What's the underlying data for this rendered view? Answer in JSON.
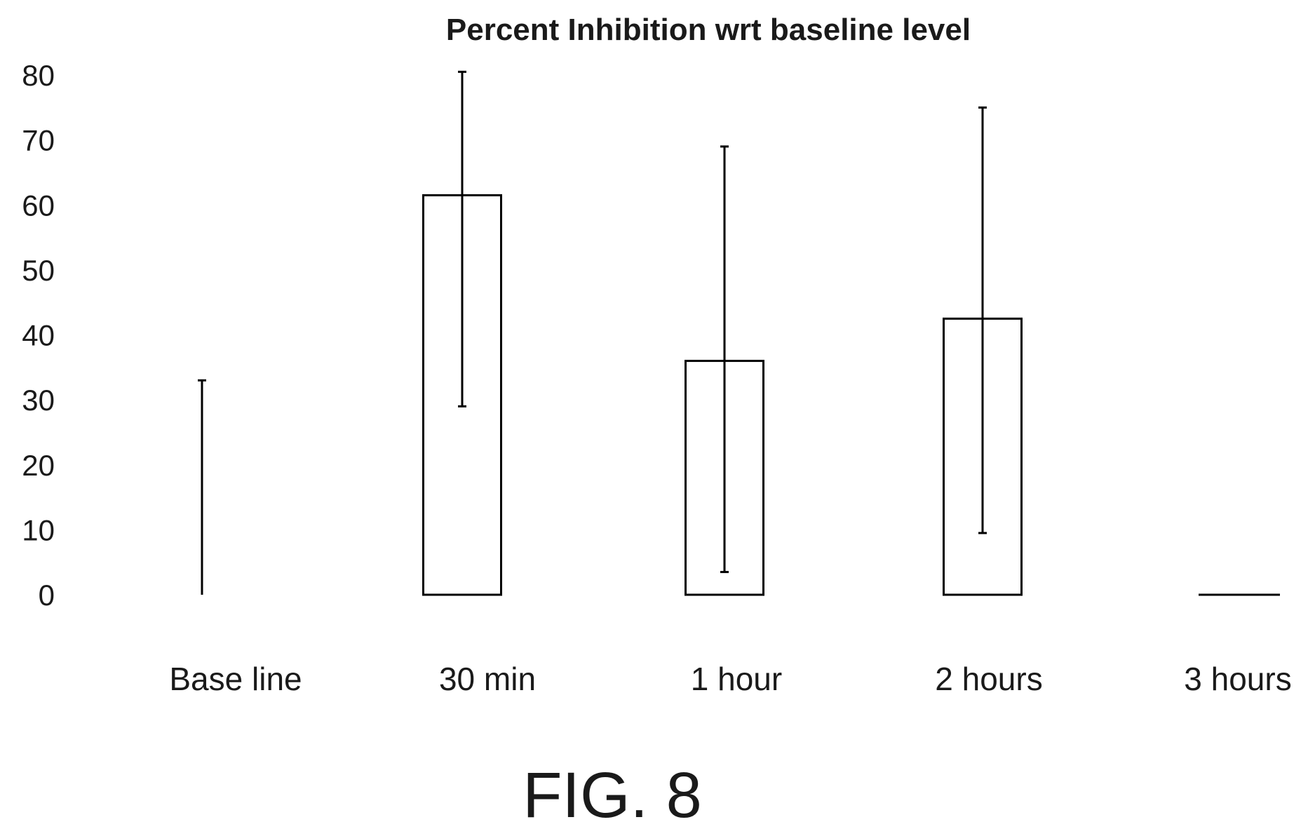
{
  "chart_data": {
    "type": "bar",
    "title": "Percent Inhibition wrt baseline level",
    "xlabel": "",
    "ylabel": "",
    "categories": [
      "Base line",
      "30 min",
      "1 hour",
      "2 hours",
      "3 hours"
    ],
    "values": [
      0,
      61.5,
      36,
      42.5,
      0
    ],
    "error_low": [
      0,
      29,
      3.5,
      9.5,
      0
    ],
    "error_high": [
      33,
      80.5,
      69,
      75,
      0
    ],
    "ylim": [
      0,
      80
    ],
    "yticks": [
      "0",
      "10",
      "20",
      "30",
      "40",
      "50",
      "60",
      "70",
      "80"
    ],
    "grid": false,
    "legend": "none",
    "bar_fill": "#ffffff",
    "bar_stroke": "#000000"
  },
  "figure": {
    "caption": "FIG. 8"
  }
}
